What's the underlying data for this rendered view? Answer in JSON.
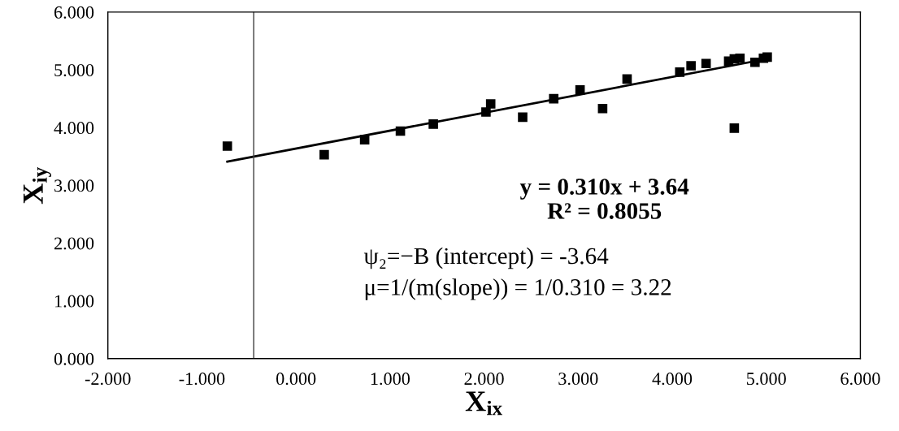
{
  "chart_data": {
    "type": "scatter",
    "xlabel": "X$_{ix}$",
    "ylabel": "X$_{iy}$",
    "series": [
      {
        "color": "#000000",
        "marker": "square",
        "x": [
          -0.73,
          0.3,
          0.73,
          1.11,
          1.46,
          2.02,
          2.07,
          2.41,
          2.74,
          3.02,
          3.26,
          3.52,
          4.08,
          4.2,
          4.36,
          4.6,
          4.66,
          4.72,
          4.66,
          4.88,
          4.97,
          5.01
        ],
        "values": [
          3.68,
          3.53,
          3.79,
          3.94,
          4.06,
          4.27,
          4.41,
          4.18,
          4.5,
          4.65,
          4.33,
          4.84,
          4.96,
          5.07,
          5.11,
          5.15,
          5.19,
          5.2,
          3.99,
          5.13,
          5.2,
          5.22
        ]
      },
      {
        "type": "line",
        "color": "#000000",
        "marker": "none",
        "line_style": "solid",
        "x": [
          -0.73,
          5.01
        ],
        "values": [
          3.41,
          5.19
        ]
      }
    ],
    "xlim": [
      -2,
      6
    ],
    "ylim": [
      0,
      6
    ],
    "xticks": [
      {
        "value": -2,
        "label": "-2.000"
      },
      {
        "value": -1,
        "label": "-1.000"
      },
      {
        "value": 0,
        "label": "0.000"
      },
      {
        "value": 1,
        "label": "1.000"
      },
      {
        "value": 2,
        "label": "2.000"
      },
      {
        "value": 3,
        "label": "3.000"
      },
      {
        "value": 4,
        "label": "4.000"
      },
      {
        "value": 5,
        "label": "5.000"
      },
      {
        "value": 6,
        "label": "6.000"
      }
    ],
    "yticks": [
      {
        "value": 0,
        "label": "0.000"
      },
      {
        "value": 1,
        "label": "1.000"
      },
      {
        "value": 2,
        "label": "2.000"
      },
      {
        "value": 3,
        "label": "3.000"
      },
      {
        "value": 4,
        "label": "4.000"
      },
      {
        "value": 5,
        "label": "5.000"
      },
      {
        "value": 6,
        "label": "6.000"
      }
    ],
    "ref_lines": [
      {
        "axis": "x",
        "value": -0.45,
        "color": "#404040"
      }
    ],
    "grid": false,
    "annotations": [
      "y = 0.310x + 3.64",
      "R² = 0.8055",
      "ψ₂=−B (intercept) = -3.64",
      "μ=1/(m(slope)) = 1/0.310 = 3.22"
    ]
  }
}
